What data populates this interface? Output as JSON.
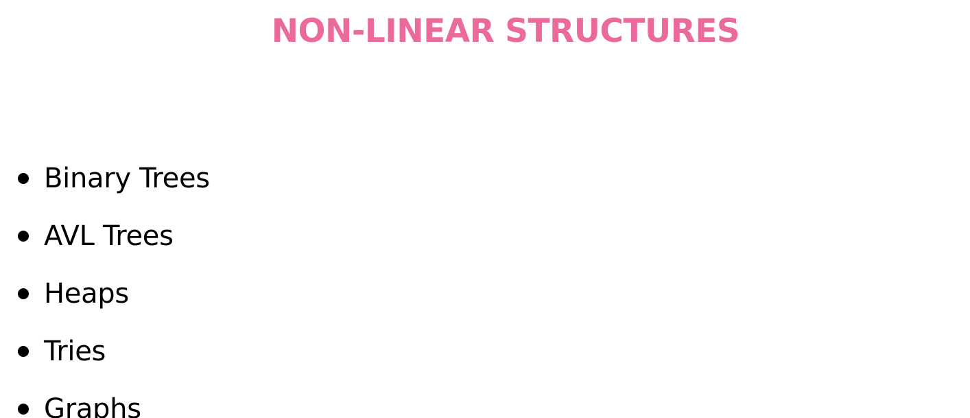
{
  "title": "NON-LINEAR STRUCTURES",
  "items": [
    {
      "label": "Binary Trees"
    },
    {
      "label": "AVL Trees"
    },
    {
      "label": "Heaps"
    },
    {
      "label": "Tries"
    },
    {
      "label": "Graphs"
    }
  ],
  "colors": {
    "title": "#ea6b9b",
    "text": "#000000",
    "background": "#ffffff"
  }
}
